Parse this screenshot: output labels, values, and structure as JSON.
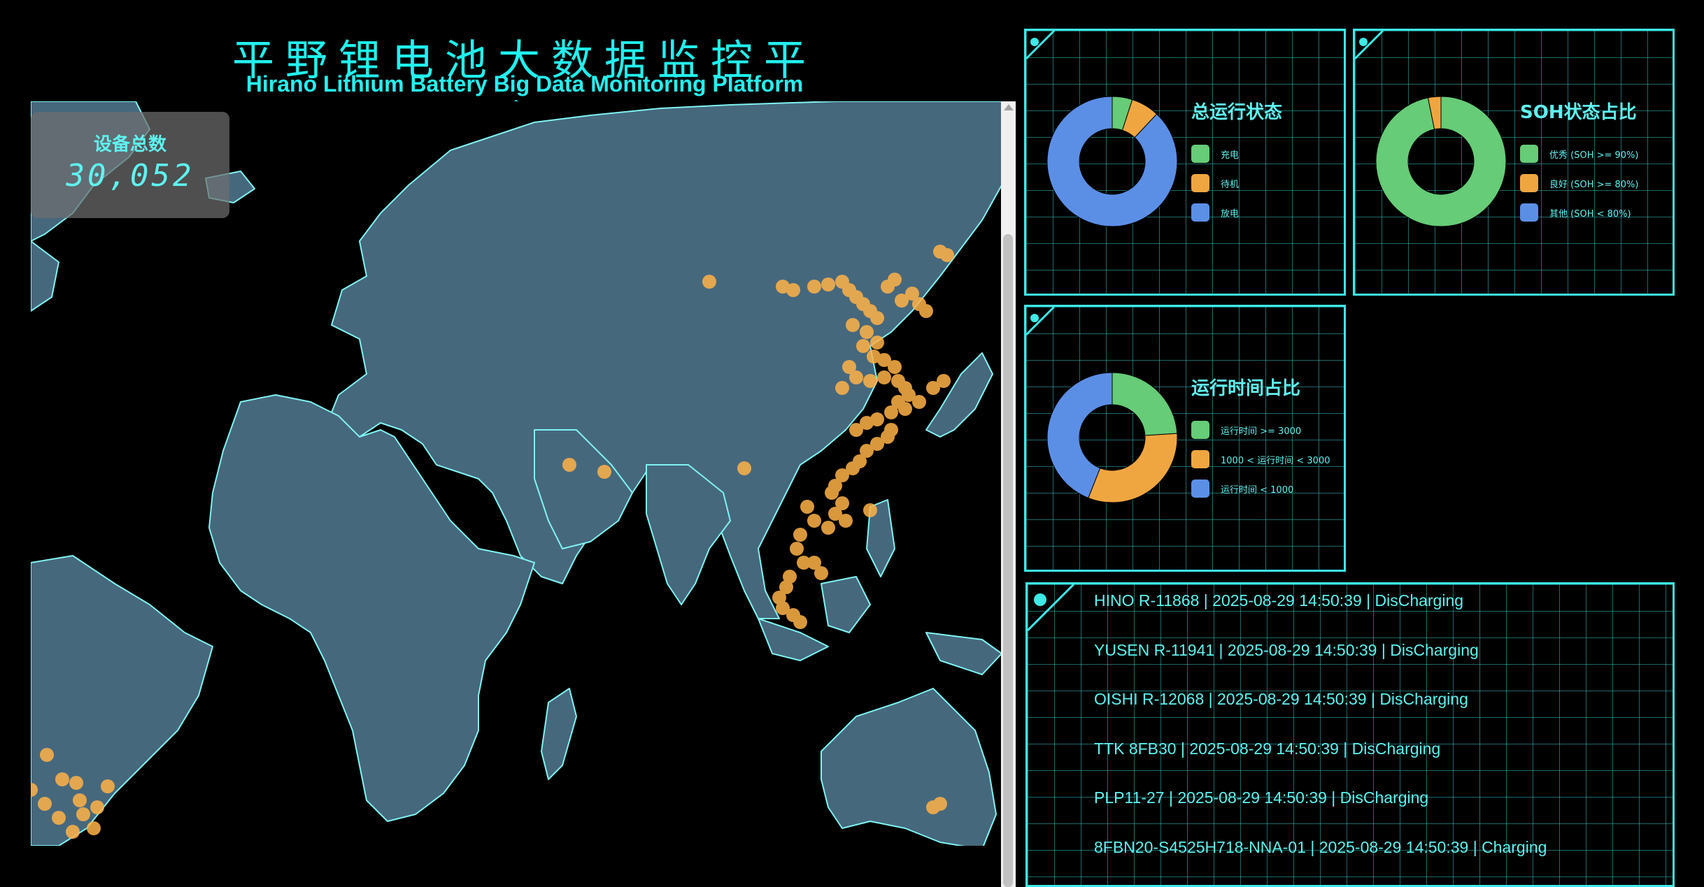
{
  "header": {
    "title_cn": "平野锂电池大数据监控平台",
    "title_en": "Hirano Lithium Battery Big Data Monitoring Platform"
  },
  "device_total": {
    "label": "设备总数",
    "value": "30,052"
  },
  "colors": {
    "accent": "#3ee9e6",
    "land": "#46687d",
    "border": "#7ff3f2",
    "marker": "#ffb347",
    "green": "#66cc77",
    "orange": "#f0a640",
    "blue": "#5b8fe6"
  },
  "charts": {
    "operation_status": {
      "title": "总运行状态",
      "legend": [
        "充电",
        "待机",
        "放电"
      ],
      "values_pct": [
        5,
        7,
        88
      ]
    },
    "soh_ratio": {
      "title": "SOH状态占比",
      "legend": [
        "优秀 (SOH >= 90%)",
        "良好 (SOH >= 80%)",
        "其他 (SOH < 80%)"
      ],
      "values_pct": [
        96.8,
        3.2,
        0
      ]
    },
    "runtime_ratio": {
      "title": "运行时间占比",
      "legend": [
        "运行时间 >= 3000",
        "1000 < 运行时间 < 3000",
        "运行时间 < 1000"
      ],
      "values_pct": [
        24,
        32,
        44
      ]
    }
  },
  "feed": [
    "HINO R-11868 | 2025-08-29 14:50:39 | DisCharging",
    "YUSEN R-11941 | 2025-08-29 14:50:39 | DisCharging",
    "OISHI R-12068 | 2025-08-29 14:50:39 | DisCharging",
    "TTK 8FB30 | 2025-08-29 14:50:39 | DisCharging",
    "PLP11-27 | 2025-08-29 14:50:39 | DisCharging",
    "8FBN20-S4525H718-NNA-01 | 2025-08-29 14:50:39 | Charging"
  ]
}
